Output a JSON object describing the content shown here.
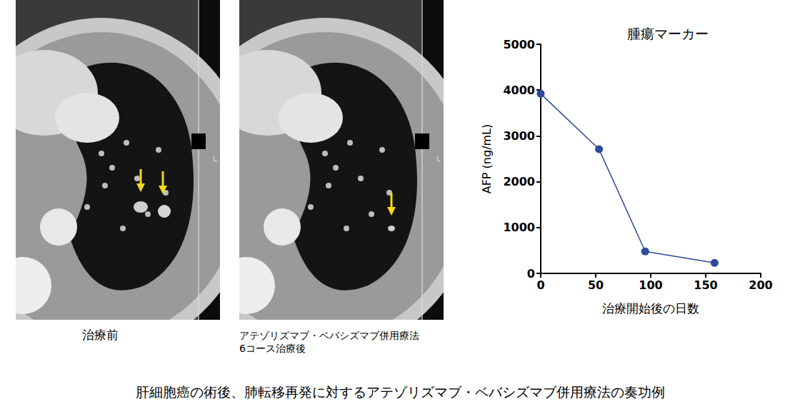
{
  "chart_data": {
    "type": "line",
    "title": "腫瘍マーカー",
    "x_label": "治療開始後の日数",
    "y_label": "AFP (ng/mL)",
    "x": [
      0,
      53,
      95,
      158
    ],
    "values": [
      3920,
      2710,
      480,
      230
    ],
    "color": "#2b4a9b",
    "marker": "circle",
    "xlim": [
      0,
      200
    ],
    "xticks": [
      0,
      50,
      100,
      150,
      200
    ],
    "ylim": [
      0,
      5000
    ],
    "yticks": [
      0,
      1000,
      2000,
      3000,
      4000,
      5000
    ],
    "grid": false
  },
  "panels": [
    {
      "caption": [
        "治療前"
      ],
      "marker_label": "L"
    },
    {
      "caption": [
        "アテゾリズマブ・ベバシズマブ併用療法",
        "6コース治療後"
      ],
      "marker_label": "L"
    }
  ],
  "caption": "肝細胞癌の術後、肺転移再発に対するアテゾリズマブ・ベバシズマブ併用療法の奏功例"
}
